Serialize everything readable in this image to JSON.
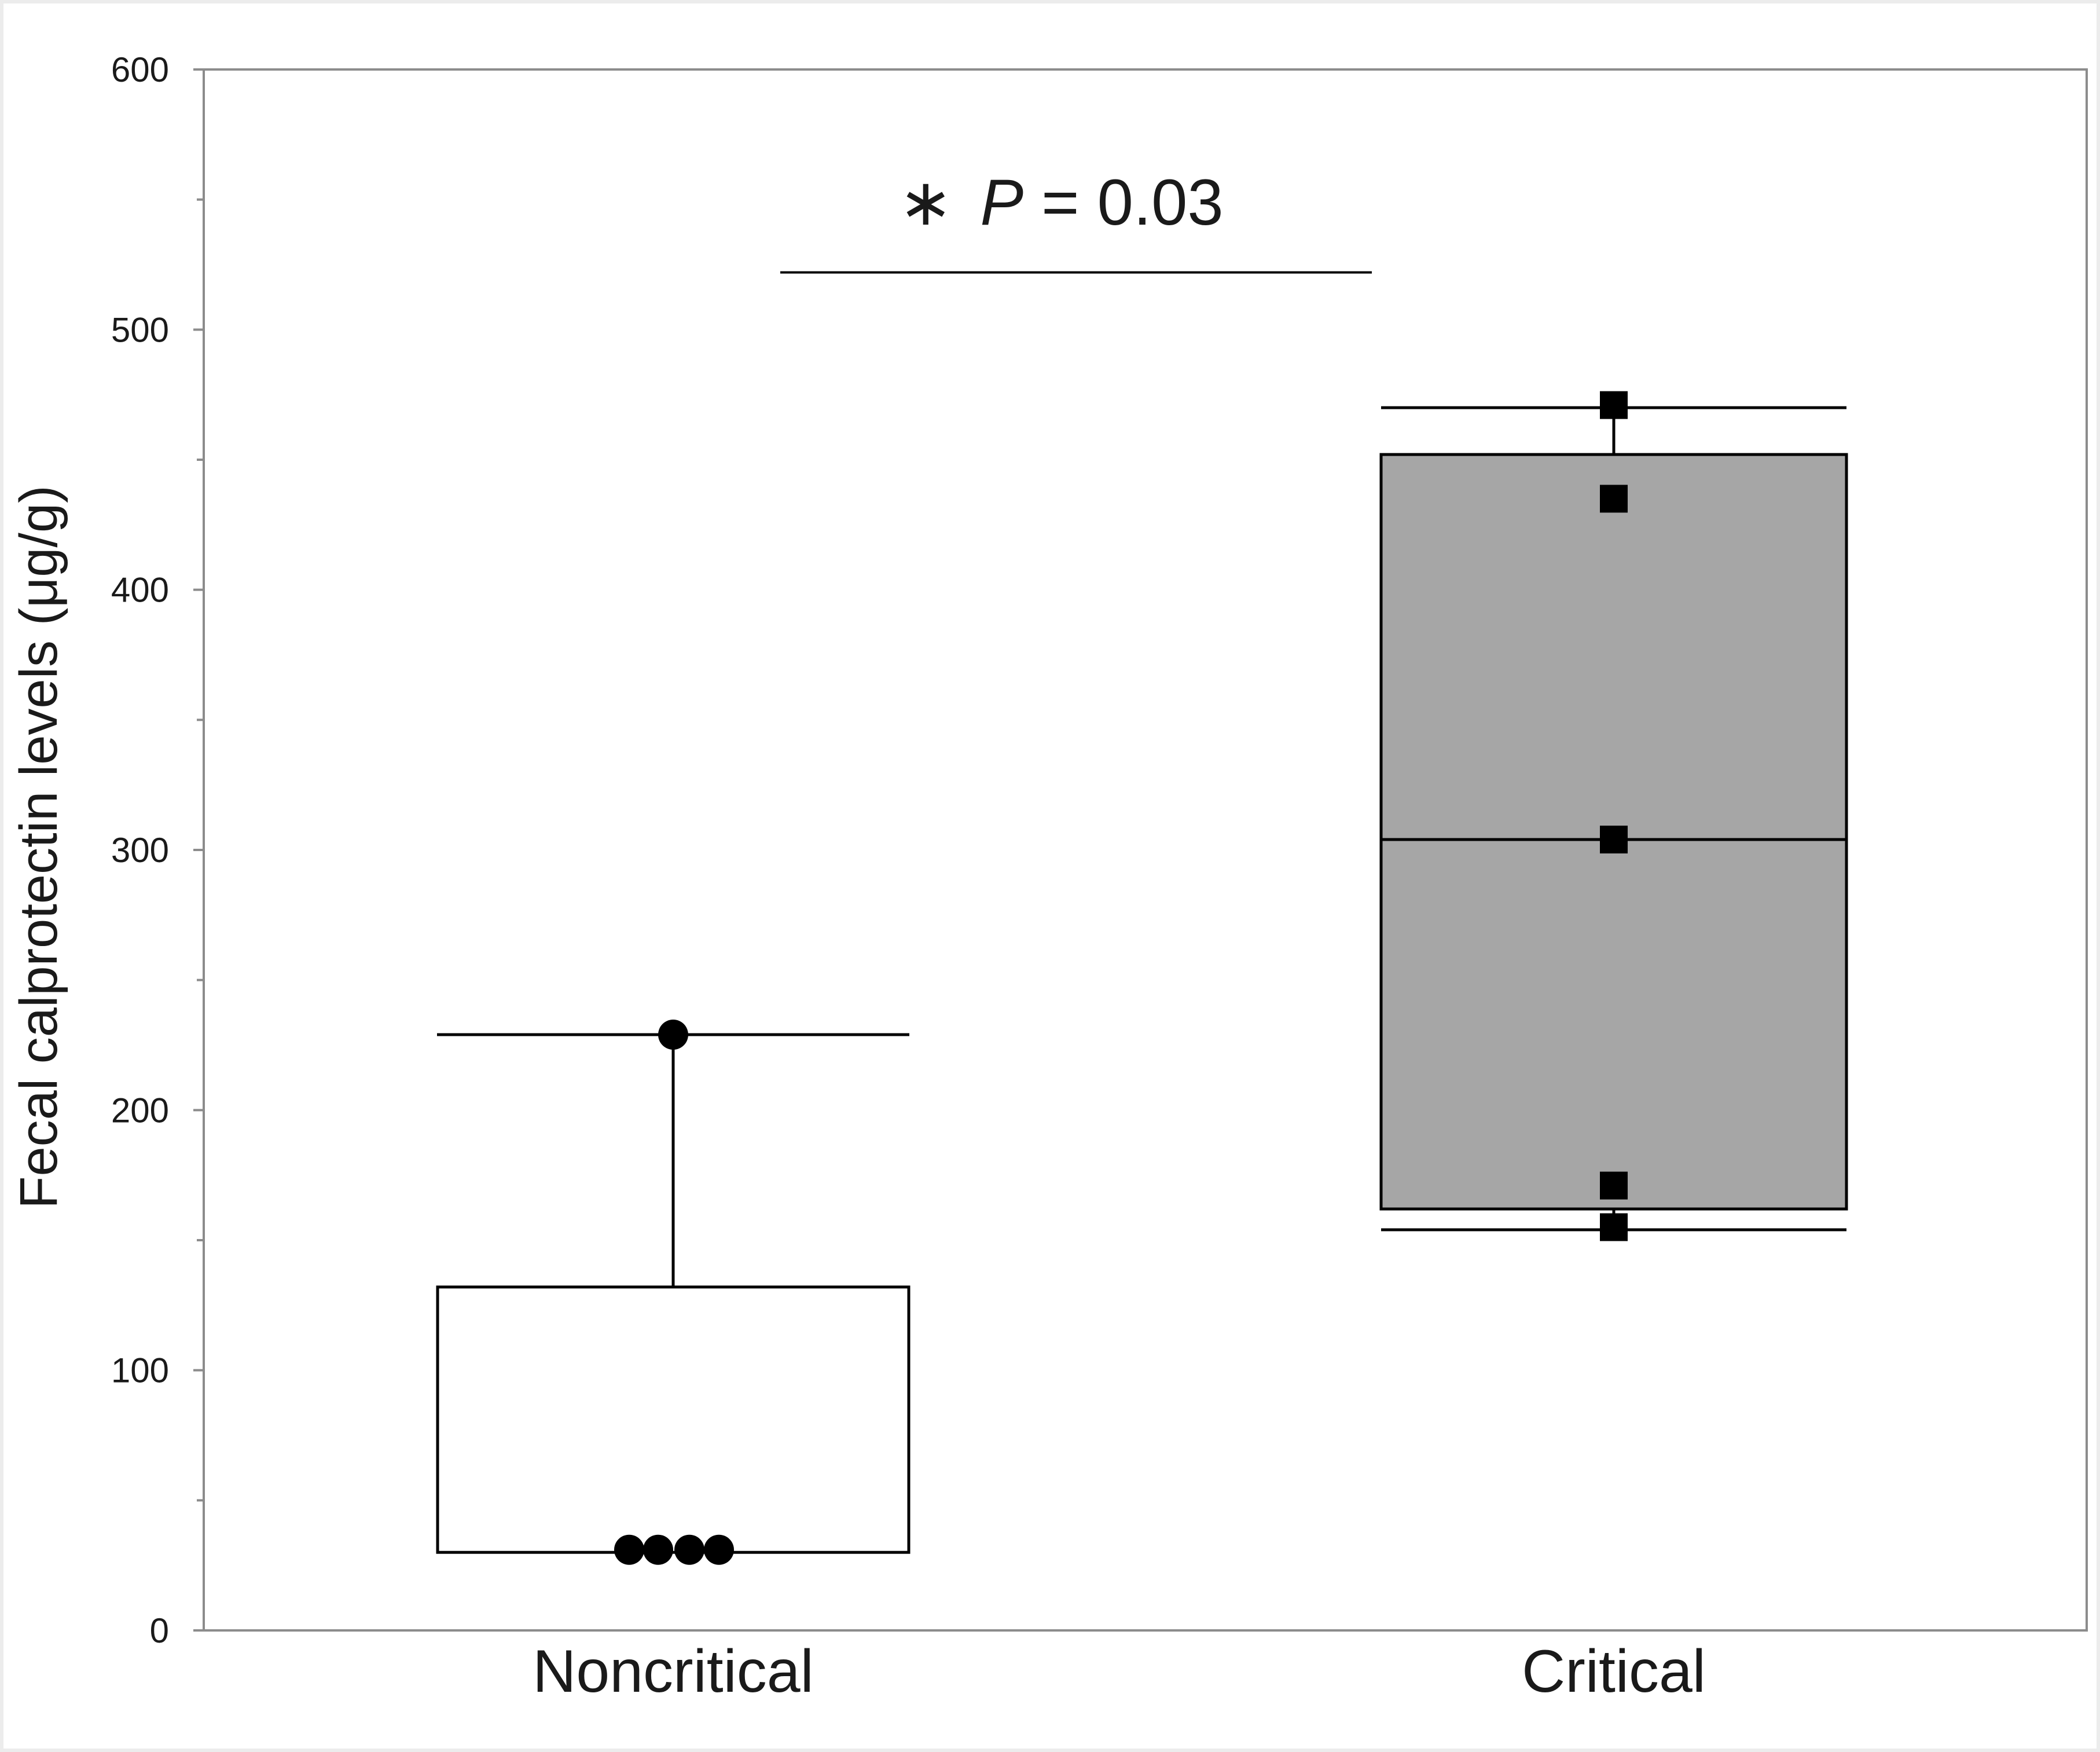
{
  "chart_data": {
    "type": "box",
    "ylabel": "Fecal calprotectin levels (μg/g)",
    "ylim": [
      0,
      600
    ],
    "yticks": [
      0,
      100,
      200,
      300,
      400,
      500,
      600
    ],
    "y_minor_ticks": [
      50,
      150,
      250,
      350,
      450,
      550
    ],
    "grid": false,
    "categories": [
      "Noncritical",
      "Critical"
    ],
    "groups": [
      {
        "name": "Noncritical",
        "box_fill": "#ffffff",
        "marker": "circle",
        "whisker_low": 30,
        "q1": 30,
        "median": 30,
        "q3": 132,
        "whisker_high": 229,
        "points": [
          229,
          31,
          31,
          31,
          31
        ]
      },
      {
        "name": "Critical",
        "box_fill": "#a6a6a6",
        "marker": "square",
        "whisker_low": 154,
        "q1": 162,
        "median": 304,
        "q3": 452,
        "whisker_high": 470,
        "points": [
          471,
          435,
          304,
          171,
          155
        ]
      }
    ],
    "annotation": {
      "star": "∗",
      "p_symbol": "P",
      "p_rest": " = 0.03",
      "bracket_between": [
        "Noncritical",
        "Critical"
      ],
      "bracket_y": 522
    }
  },
  "colors": {
    "page_border": "#ececec",
    "axis": "#8c8c8c",
    "ink": "#000000"
  }
}
